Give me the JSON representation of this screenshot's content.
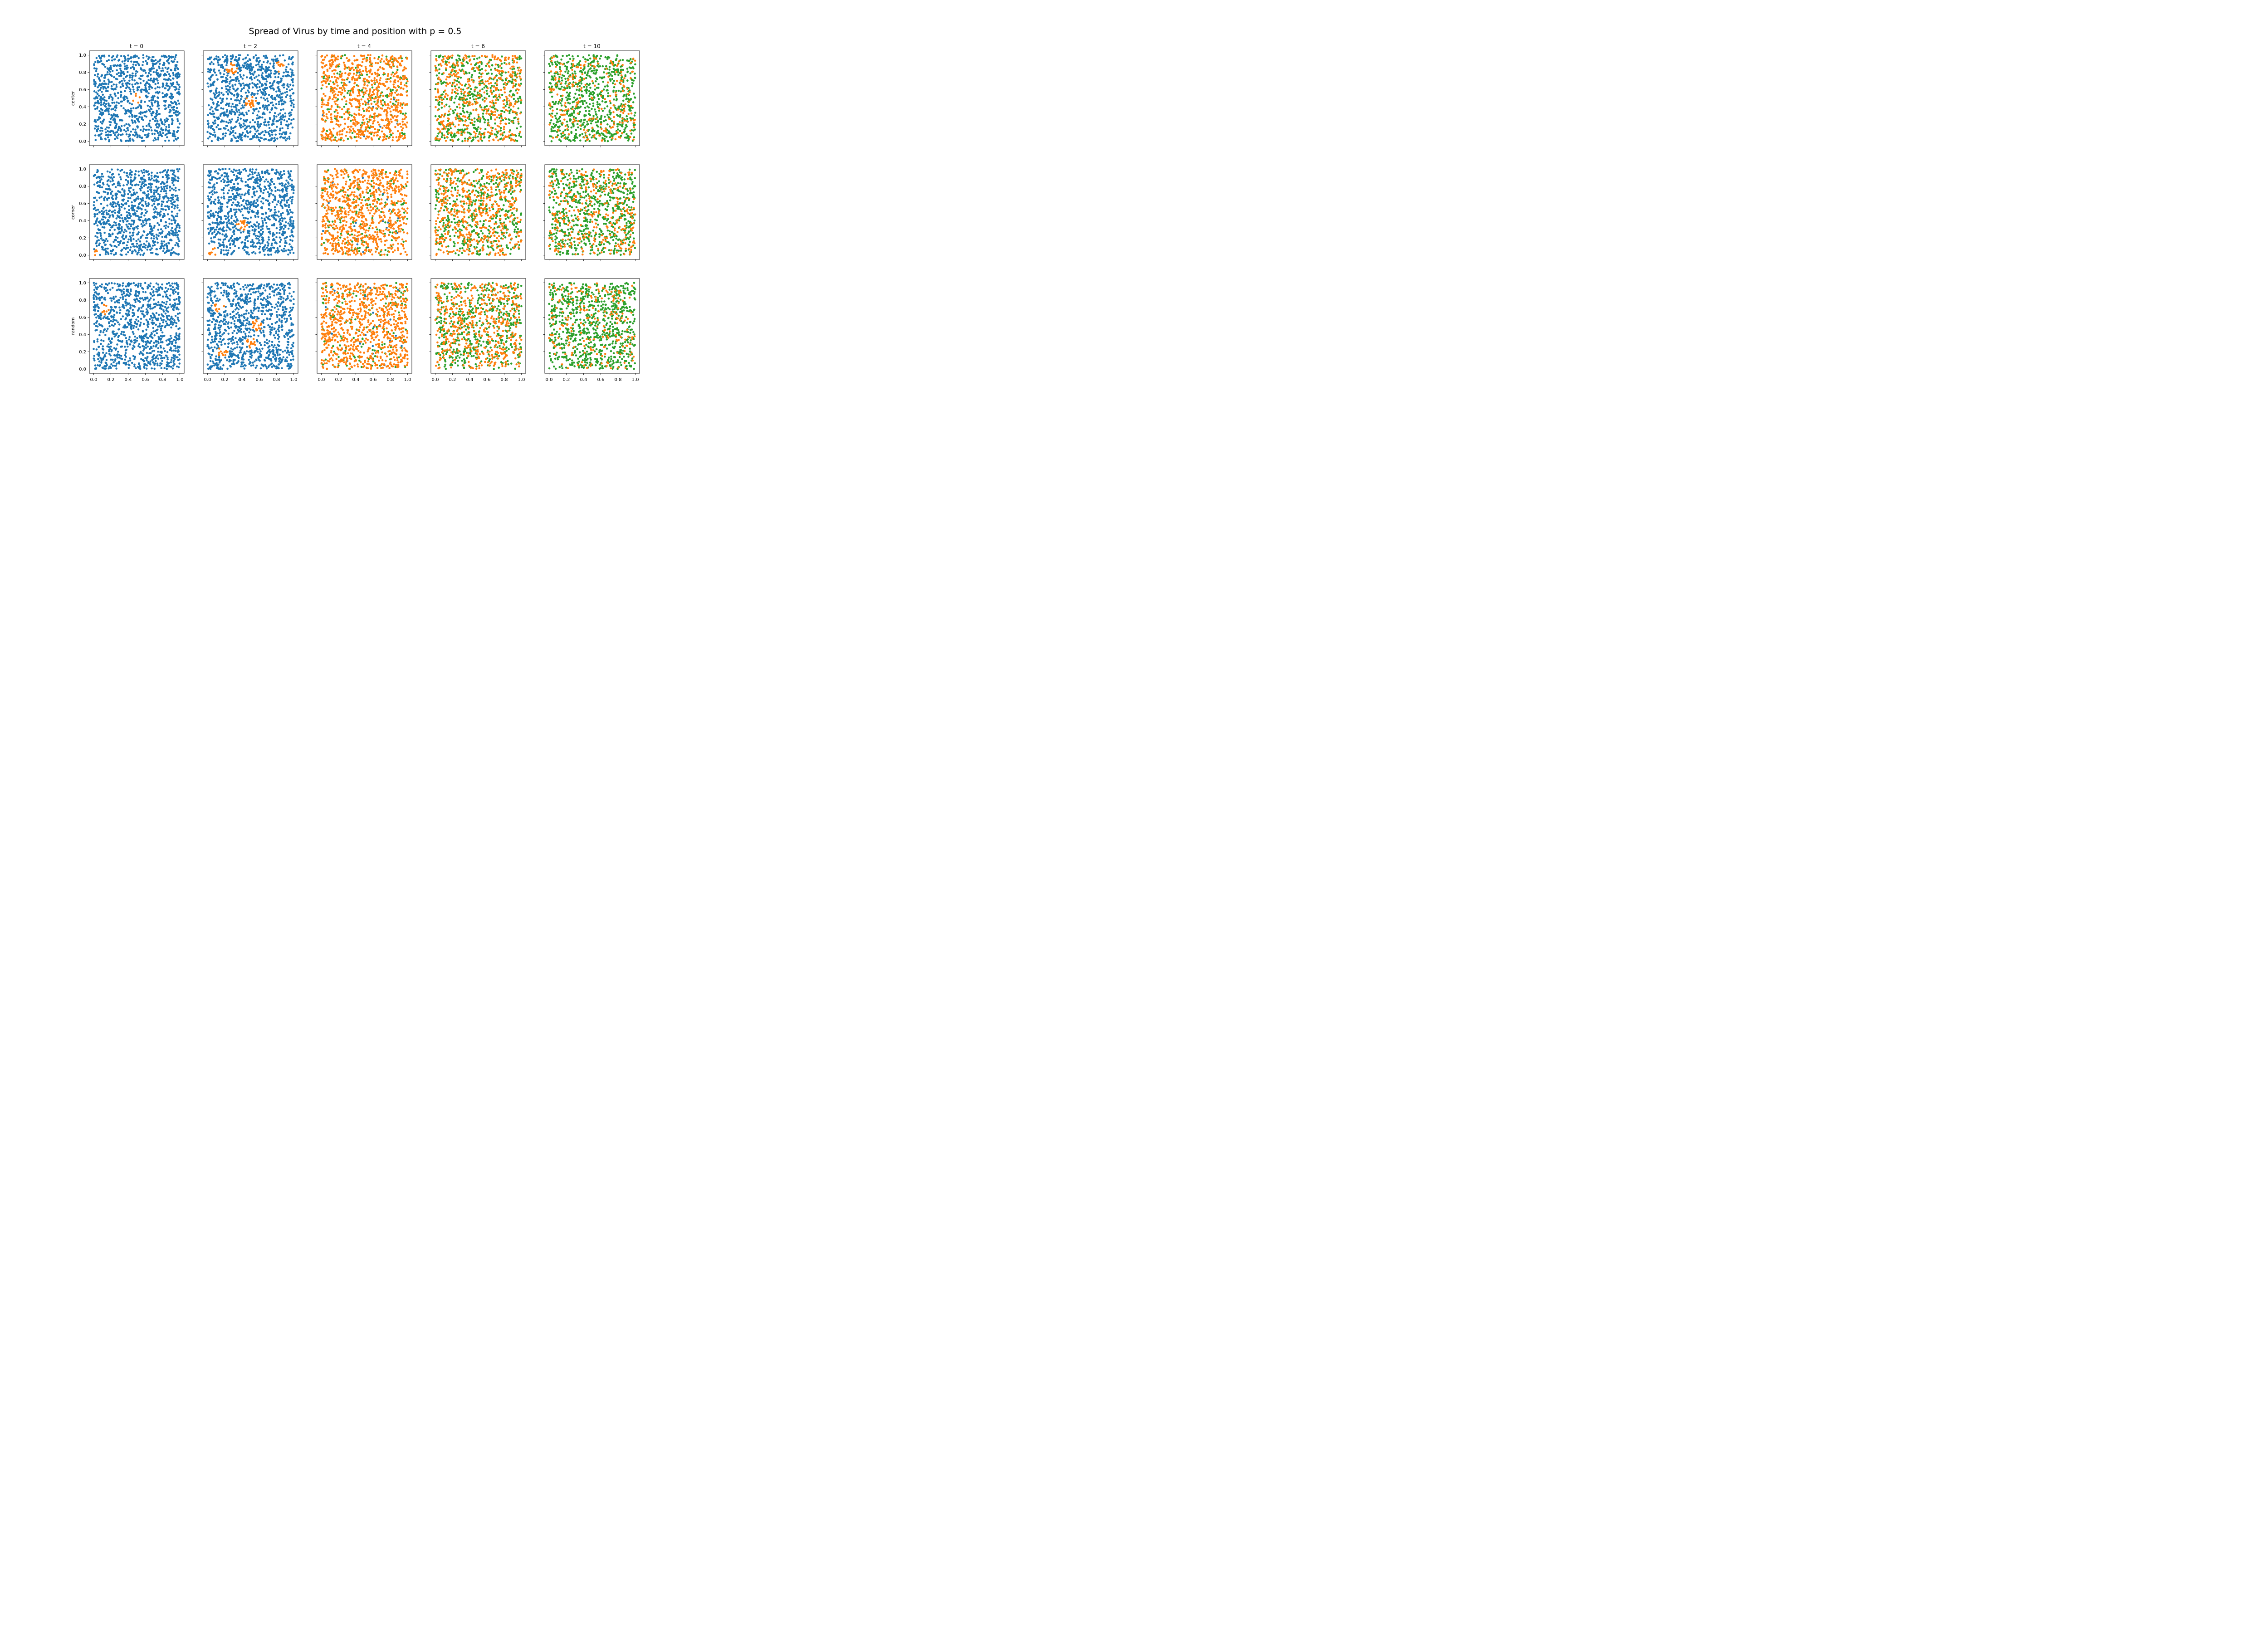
{
  "title": "Spread of Virus by time and position with p = 0.5",
  "columns": [
    "t = 0",
    "t = 2",
    "t = 4",
    "t = 6",
    "t = 10"
  ],
  "rows": [
    "center",
    "corner",
    "random"
  ],
  "colors": {
    "susceptible": "#1f77b4",
    "infected": "#ff7f0e",
    "recovered": "#2ca02c"
  },
  "chart_data": {
    "type": "scatter",
    "title": "Spread of Virus by time and position with p = 0.5",
    "grid": false,
    "xlim": [
      0.0,
      1.0
    ],
    "ylim": [
      0.0,
      1.0
    ],
    "x_ticks": [
      "0.0",
      "0.2",
      "0.4",
      "0.6",
      "0.8",
      "1.0"
    ],
    "y_ticks": [
      "0.0",
      "0.2",
      "0.4",
      "0.6",
      "0.8",
      "1.0"
    ],
    "points_per_panel": 1000,
    "shared_x": true,
    "shared_y": true,
    "panels": [
      {
        "row": "center",
        "col": "t = 0",
        "fractions": {
          "susceptible": 0.999,
          "infected": 0.001,
          "recovered": 0.0
        },
        "clusters": [
          [
            0.49,
            0.5
          ]
        ]
      },
      {
        "row": "center",
        "col": "t = 2",
        "fractions": {
          "susceptible": 0.96,
          "infected": 0.04,
          "recovered": 0.0
        },
        "clusters": [
          [
            0.28,
            0.85
          ],
          [
            0.5,
            0.46
          ],
          [
            0.84,
            0.86
          ]
        ]
      },
      {
        "row": "center",
        "col": "t = 4",
        "fractions": {
          "susceptible": 0.02,
          "infected": 0.8,
          "recovered": 0.18
        },
        "clusters": []
      },
      {
        "row": "center",
        "col": "t = 6",
        "fractions": {
          "susceptible": 0.0,
          "infected": 0.5,
          "recovered": 0.5
        },
        "clusters": []
      },
      {
        "row": "center",
        "col": "t = 10",
        "fractions": {
          "susceptible": 0.0,
          "infected": 0.25,
          "recovered": 0.75
        },
        "clusters": []
      },
      {
        "row": "corner",
        "col": "t = 0",
        "fractions": {
          "susceptible": 0.999,
          "infected": 0.001,
          "recovered": 0.0
        },
        "clusters": [
          [
            0.0,
            0.0
          ]
        ]
      },
      {
        "row": "corner",
        "col": "t = 2",
        "fractions": {
          "susceptible": 0.98,
          "infected": 0.02,
          "recovered": 0.0
        },
        "clusters": [
          [
            0.05,
            0.03
          ],
          [
            0.4,
            0.35
          ]
        ]
      },
      {
        "row": "corner",
        "col": "t = 4",
        "fractions": {
          "susceptible": 0.02,
          "infected": 0.82,
          "recovered": 0.16
        },
        "clusters": []
      },
      {
        "row": "corner",
        "col": "t = 6",
        "fractions": {
          "susceptible": 0.0,
          "infected": 0.55,
          "recovered": 0.45
        },
        "clusters": []
      },
      {
        "row": "corner",
        "col": "t = 10",
        "fractions": {
          "susceptible": 0.0,
          "infected": 0.3,
          "recovered": 0.7
        },
        "clusters": []
      },
      {
        "row": "random",
        "col": "t = 0",
        "fractions": {
          "susceptible": 0.999,
          "infected": 0.001,
          "recovered": 0.0
        },
        "clusters": [
          [
            0.13,
            0.7
          ]
        ]
      },
      {
        "row": "random",
        "col": "t = 2",
        "fractions": {
          "susceptible": 0.95,
          "infected": 0.05,
          "recovered": 0.0
        },
        "clusters": [
          [
            0.13,
            0.72
          ],
          [
            0.18,
            0.2
          ],
          [
            0.5,
            0.31
          ],
          [
            0.57,
            0.51
          ]
        ]
      },
      {
        "row": "random",
        "col": "t = 4",
        "fractions": {
          "susceptible": 0.02,
          "infected": 0.83,
          "recovered": 0.15
        },
        "clusters": []
      },
      {
        "row": "random",
        "col": "t = 6",
        "fractions": {
          "susceptible": 0.0,
          "infected": 0.45,
          "recovered": 0.55
        },
        "clusters": []
      },
      {
        "row": "random",
        "col": "t = 10",
        "fractions": {
          "susceptible": 0.0,
          "infected": 0.2,
          "recovered": 0.8
        },
        "clusters": []
      }
    ]
  }
}
